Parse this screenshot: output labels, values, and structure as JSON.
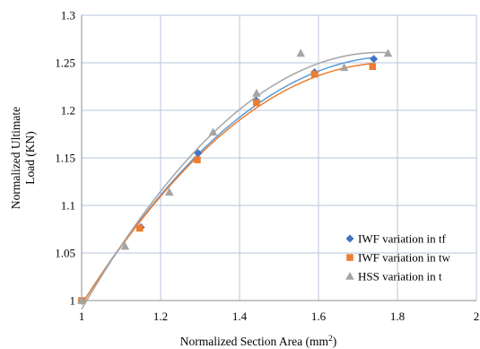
{
  "chart_data": {
    "type": "scatter",
    "xlabel": "Normalized Section Area (mm",
    "xlabel_sup": "2",
    "xlabel_close": ")",
    "ylabel_line1": "Normalized Ultimate",
    "ylabel_line2": "Load (KN)",
    "xlim": [
      1,
      2
    ],
    "ylim": [
      1,
      1.3
    ],
    "x_ticks": [
      "1",
      "1.2",
      "1.4",
      "1.6",
      "1.8",
      "2"
    ],
    "y_ticks": [
      "1",
      "1.05",
      "1.1",
      "1.15",
      "1.2",
      "1.25",
      "1.3"
    ],
    "grid": true,
    "legend_position": "bottom-right",
    "series": [
      {
        "name": "IWF variation in tf",
        "marker": "diamond",
        "color": "#4472C4",
        "trend_color": "#5B9BD5",
        "x": [
          1.0,
          1.15,
          1.295,
          1.443,
          1.59,
          1.74
        ],
        "y": [
          1.0,
          1.077,
          1.155,
          1.21,
          1.24,
          1.254
        ]
      },
      {
        "name": "IWF variation in tw",
        "marker": "square",
        "color": "#ED7D31",
        "trend_color": "#ED7D31",
        "x": [
          1.0,
          1.147,
          1.293,
          1.443,
          1.59,
          1.737
        ],
        "y": [
          1.0,
          1.076,
          1.148,
          1.208,
          1.238,
          1.246
        ]
      },
      {
        "name": "HSS variation in t",
        "marker": "triangle",
        "color": "#A5A5A5",
        "trend_color": "#A5A5A5",
        "x": [
          1.0,
          1.11,
          1.222,
          1.333,
          1.443,
          1.555,
          1.665,
          1.776
        ],
        "y": [
          1.0,
          1.057,
          1.114,
          1.177,
          1.218,
          1.26,
          1.245,
          1.26
        ]
      }
    ]
  }
}
